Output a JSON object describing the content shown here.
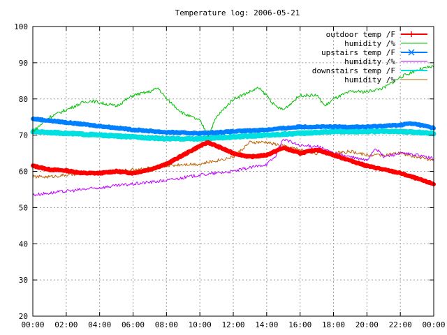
{
  "chart_data": {
    "type": "line",
    "title": "Temperature log: 2006-05-21",
    "xlabel": "",
    "ylabel": "",
    "xlim": [
      0,
      24
    ],
    "ylim": [
      20,
      100
    ],
    "grid": true,
    "legend_position": "top-right",
    "x_ticks": [
      {
        "value": 0,
        "label": "00:00"
      },
      {
        "value": 2,
        "label": "02:00"
      },
      {
        "value": 4,
        "label": "04:00"
      },
      {
        "value": 6,
        "label": "06:00"
      },
      {
        "value": 8,
        "label": "08:00"
      },
      {
        "value": 10,
        "label": "10:00"
      },
      {
        "value": 12,
        "label": "12:00"
      },
      {
        "value": 14,
        "label": "14:00"
      },
      {
        "value": 16,
        "label": "16:00"
      },
      {
        "value": 18,
        "label": "18:00"
      },
      {
        "value": 20,
        "label": "20:00"
      },
      {
        "value": 22,
        "label": "22:00"
      },
      {
        "value": 24,
        "label": "00:00"
      }
    ],
    "y_ticks": [
      {
        "value": 20,
        "label": "20"
      },
      {
        "value": 30,
        "label": "30"
      },
      {
        "value": 40,
        "label": "40"
      },
      {
        "value": 50,
        "label": "50"
      },
      {
        "value": 60,
        "label": "60"
      },
      {
        "value": 70,
        "label": "70"
      },
      {
        "value": 80,
        "label": "80"
      },
      {
        "value": 90,
        "label": "90"
      },
      {
        "value": 100,
        "label": "100"
      }
    ],
    "series": [
      {
        "name": "outdoor temp /F",
        "color": "#ff0000",
        "width": 6,
        "marker": "plus",
        "x": [
          0,
          1,
          2,
          3,
          4,
          5,
          6,
          7,
          8,
          9,
          10,
          10.5,
          11,
          12,
          13,
          14,
          15,
          16,
          17,
          18,
          19,
          20,
          21,
          22,
          23,
          24
        ],
        "y": [
          61.5,
          60.5,
          60.2,
          59.5,
          59.5,
          60,
          59.5,
          60.5,
          62,
          64.5,
          67,
          68,
          67,
          65,
          64,
          64.5,
          66.5,
          65,
          66,
          64.5,
          63,
          61.5,
          60.5,
          59.5,
          58,
          56.5
        ]
      },
      {
        "name": "humidity /%",
        "color": "#00c000",
        "width": 1,
        "marker": "none",
        "x": [
          0,
          1,
          2,
          3,
          3.5,
          4,
          5,
          6,
          7,
          7.5,
          8,
          9,
          10,
          10.5,
          11,
          12,
          13,
          13.5,
          14,
          14.5,
          15,
          16,
          17,
          17.5,
          18,
          19,
          20,
          21,
          22,
          23,
          24
        ],
        "y": [
          71,
          75,
          77,
          79,
          79.5,
          79,
          78,
          81,
          82,
          83,
          80,
          76,
          74,
          70,
          75,
          80,
          82,
          83,
          81,
          78,
          77,
          81,
          81,
          78,
          80,
          82,
          82,
          83,
          86,
          88,
          89
        ]
      },
      {
        "name": "upstairs temp /F",
        "color": "#0080ff",
        "width": 6,
        "marker": "cross",
        "x": [
          0,
          2,
          4,
          6,
          8,
          10,
          12,
          14,
          16,
          18,
          20,
          22,
          22.5,
          23,
          24
        ],
        "y": [
          74.5,
          73.5,
          72.5,
          71.5,
          70.8,
          70.5,
          71,
          71.5,
          72.3,
          72.3,
          72.3,
          72.8,
          73.2,
          73,
          72
        ]
      },
      {
        "name": "humidity /%",
        "color": "#c000ff",
        "width": 1,
        "marker": "none",
        "x": [
          0,
          2,
          4,
          6,
          8,
          10,
          12,
          13,
          14,
          14.5,
          15,
          16,
          17,
          18,
          19,
          20,
          20.5,
          21,
          22,
          23,
          24
        ],
        "y": [
          53.5,
          54.5,
          55.5,
          56.5,
          57.5,
          59,
          60,
          61,
          62,
          64,
          69,
          67,
          67,
          65,
          64,
          63,
          66.5,
          64,
          65,
          64.5,
          63.5
        ]
      },
      {
        "name": "downstairs temp /F",
        "color": "#00e0e0",
        "width": 7,
        "marker": "none",
        "x": [
          0,
          2,
          4,
          6,
          8,
          10,
          12,
          14,
          16,
          18,
          20,
          22,
          24
        ],
        "y": [
          71,
          70.5,
          70,
          69.5,
          69,
          69,
          69.5,
          70,
          70.5,
          71,
          71,
          71,
          70.5
        ]
      },
      {
        "name": "humidity /%",
        "color": "#c06000",
        "width": 1,
        "marker": "none",
        "x": [
          0,
          1,
          2,
          4,
          6,
          8,
          9,
          10,
          11,
          12,
          13,
          14,
          15,
          16,
          17,
          18,
          19,
          20,
          21,
          22,
          23,
          24
        ],
        "y": [
          58.5,
          58.5,
          59,
          59.5,
          60.5,
          61.5,
          62,
          62,
          63,
          64,
          68,
          68,
          67,
          66,
          65,
          65,
          65.5,
          64.5,
          64.5,
          65,
          64,
          63
        ]
      }
    ]
  }
}
